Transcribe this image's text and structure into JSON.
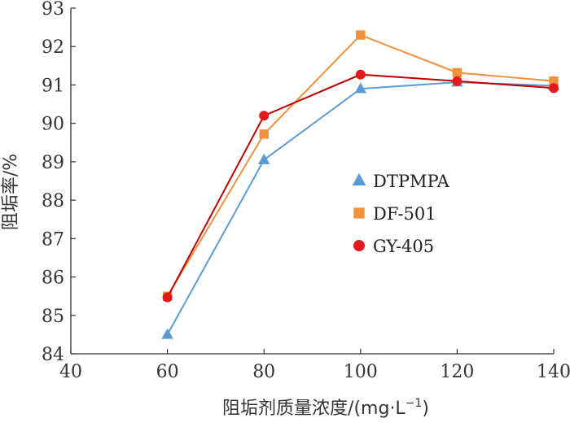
{
  "chart_data": {
    "type": "line",
    "title": "",
    "xlabel": "阻垢剂质量浓度/(mg·L",
    "xlabel_sup": "−1",
    "xlabel_suffix": ")",
    "ylabel": "阻垢率/%",
    "xlim": [
      40,
      140
    ],
    "ylim": [
      84,
      93
    ],
    "x": [
      60,
      80,
      100,
      120,
      140
    ],
    "x_ticks": [
      "40",
      "60",
      "80",
      "100",
      "120",
      "140"
    ],
    "y_ticks": [
      "84",
      "85",
      "86",
      "87",
      "88",
      "89",
      "90",
      "91",
      "92",
      "93"
    ],
    "grid": false,
    "legend_position": "center-right",
    "series": [
      {
        "name": "DTPMPA",
        "marker": "triangle",
        "color": "#5b9bd5",
        "values": [
          84.5,
          89.05,
          90.9,
          91.07,
          90.98
        ]
      },
      {
        "name": "DF-501",
        "marker": "square",
        "color": "#f0913c",
        "values": [
          85.5,
          89.72,
          92.3,
          91.32,
          91.1
        ]
      },
      {
        "name": "GY-405",
        "marker": "circle",
        "color": "#e3191e",
        "line_color": "#c00000",
        "values": [
          85.47,
          90.2,
          91.27,
          91.1,
          90.92
        ]
      }
    ]
  }
}
